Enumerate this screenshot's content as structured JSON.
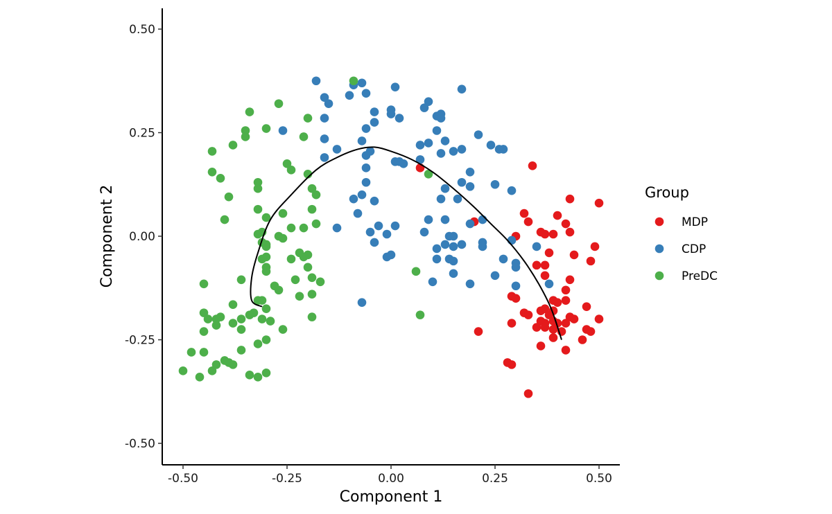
{
  "chart_data": {
    "type": "scatter",
    "title": "",
    "xlabel": "Component 1",
    "ylabel": "Component 2",
    "xlim": [
      -0.55,
      0.55
    ],
    "ylim": [
      -0.55,
      0.55
    ],
    "xticks": [
      -0.5,
      -0.25,
      0.0,
      0.25,
      0.5
    ],
    "yticks": [
      -0.5,
      -0.25,
      0.0,
      0.25,
      0.5
    ],
    "xtick_labels": [
      "-0.50",
      "-0.25",
      "0.00",
      "0.25",
      "0.50"
    ],
    "ytick_labels": [
      "-0.50",
      "-0.25",
      "0.00",
      "0.25",
      "0.50"
    ],
    "legend": {
      "title": "Group",
      "position": "right",
      "entries": [
        "MDP",
        "CDP",
        "PreDC"
      ]
    },
    "series": [
      {
        "name": "MDP",
        "color": "#e41a1c",
        "points": [
          [
            0.07,
            0.165
          ],
          [
            0.34,
            0.17
          ],
          [
            0.43,
            0.09
          ],
          [
            0.5,
            0.08
          ],
          [
            0.32,
            0.055
          ],
          [
            0.4,
            0.05
          ],
          [
            0.33,
            0.035
          ],
          [
            0.42,
            0.03
          ],
          [
            0.36,
            0.01
          ],
          [
            0.37,
            0.005
          ],
          [
            0.39,
            0.005
          ],
          [
            0.43,
            0.01
          ],
          [
            0.2,
            0.035
          ],
          [
            0.3,
            0.0
          ],
          [
            0.49,
            -0.025
          ],
          [
            0.38,
            -0.04
          ],
          [
            0.44,
            -0.045
          ],
          [
            0.48,
            -0.06
          ],
          [
            0.35,
            -0.07
          ],
          [
            0.37,
            -0.07
          ],
          [
            0.37,
            -0.095
          ],
          [
            0.43,
            -0.105
          ],
          [
            0.42,
            -0.13
          ],
          [
            0.29,
            -0.145
          ],
          [
            0.3,
            -0.15
          ],
          [
            0.42,
            -0.155
          ],
          [
            0.39,
            -0.155
          ],
          [
            0.4,
            -0.16
          ],
          [
            0.47,
            -0.17
          ],
          [
            0.36,
            -0.18
          ],
          [
            0.37,
            -0.175
          ],
          [
            0.32,
            -0.185
          ],
          [
            0.39,
            -0.18
          ],
          [
            0.33,
            -0.19
          ],
          [
            0.38,
            -0.19
          ],
          [
            0.43,
            -0.195
          ],
          [
            0.44,
            -0.2
          ],
          [
            0.5,
            -0.2
          ],
          [
            0.36,
            -0.205
          ],
          [
            0.37,
            -0.21
          ],
          [
            0.39,
            -0.205
          ],
          [
            0.4,
            -0.21
          ],
          [
            0.42,
            -0.21
          ],
          [
            0.29,
            -0.21
          ],
          [
            0.37,
            -0.22
          ],
          [
            0.35,
            -0.22
          ],
          [
            0.39,
            -0.225
          ],
          [
            0.47,
            -0.225
          ],
          [
            0.48,
            -0.23
          ],
          [
            0.21,
            -0.23
          ],
          [
            0.41,
            -0.23
          ],
          [
            0.39,
            -0.245
          ],
          [
            0.46,
            -0.25
          ],
          [
            0.36,
            -0.265
          ],
          [
            0.42,
            -0.275
          ],
          [
            0.28,
            -0.305
          ],
          [
            0.29,
            -0.31
          ],
          [
            0.33,
            -0.38
          ]
        ]
      },
      {
        "name": "CDP",
        "color": "#377eb8",
        "points": [
          [
            -0.18,
            0.375
          ],
          [
            -0.07,
            0.37
          ],
          [
            -0.09,
            0.365
          ],
          [
            -0.06,
            0.345
          ],
          [
            0.17,
            0.355
          ],
          [
            0.01,
            0.36
          ],
          [
            -0.1,
            0.34
          ],
          [
            -0.16,
            0.335
          ],
          [
            -0.15,
            0.32
          ],
          [
            0.09,
            0.325
          ],
          [
            0.08,
            0.31
          ],
          [
            0.11,
            0.29
          ],
          [
            0.12,
            0.295
          ],
          [
            -0.04,
            0.3
          ],
          [
            0.0,
            0.305
          ],
          [
            0.0,
            0.295
          ],
          [
            -0.16,
            0.285
          ],
          [
            0.02,
            0.285
          ],
          [
            0.12,
            0.285
          ],
          [
            -0.04,
            0.275
          ],
          [
            -0.06,
            0.26
          ],
          [
            -0.26,
            0.255
          ],
          [
            0.11,
            0.255
          ],
          [
            0.21,
            0.245
          ],
          [
            -0.16,
            0.235
          ],
          [
            -0.07,
            0.23
          ],
          [
            0.09,
            0.225
          ],
          [
            0.13,
            0.23
          ],
          [
            0.07,
            0.22
          ],
          [
            0.24,
            0.22
          ],
          [
            -0.13,
            0.21
          ],
          [
            0.15,
            0.205
          ],
          [
            0.17,
            0.21
          ],
          [
            0.26,
            0.21
          ],
          [
            0.27,
            0.21
          ],
          [
            -0.05,
            0.205
          ],
          [
            0.12,
            0.2
          ],
          [
            -0.16,
            0.19
          ],
          [
            -0.06,
            0.195
          ],
          [
            0.07,
            0.185
          ],
          [
            0.01,
            0.18
          ],
          [
            0.02,
            0.18
          ],
          [
            0.03,
            0.175
          ],
          [
            -0.06,
            0.165
          ],
          [
            0.19,
            0.155
          ],
          [
            -0.06,
            0.13
          ],
          [
            0.17,
            0.13
          ],
          [
            0.25,
            0.125
          ],
          [
            0.13,
            0.115
          ],
          [
            0.19,
            0.12
          ],
          [
            0.29,
            0.11
          ],
          [
            -0.07,
            0.1
          ],
          [
            -0.09,
            0.09
          ],
          [
            0.12,
            0.09
          ],
          [
            0.16,
            0.09
          ],
          [
            -0.04,
            0.085
          ],
          [
            -0.08,
            0.055
          ],
          [
            0.09,
            0.04
          ],
          [
            0.13,
            0.04
          ],
          [
            0.22,
            0.04
          ],
          [
            0.19,
            0.03
          ],
          [
            -0.13,
            0.02
          ],
          [
            -0.03,
            0.025
          ],
          [
            0.01,
            0.025
          ],
          [
            0.08,
            0.01
          ],
          [
            -0.05,
            0.01
          ],
          [
            -0.01,
            0.005
          ],
          [
            0.14,
            0.0
          ],
          [
            0.15,
            0.0
          ],
          [
            0.13,
            -0.02
          ],
          [
            0.11,
            -0.03
          ],
          [
            -0.04,
            -0.015
          ],
          [
            0.17,
            -0.02
          ],
          [
            0.15,
            -0.025
          ],
          [
            0.22,
            -0.015
          ],
          [
            0.22,
            -0.025
          ],
          [
            0.29,
            -0.01
          ],
          [
            0.35,
            -0.025
          ],
          [
            0.27,
            -0.055
          ],
          [
            0.11,
            -0.055
          ],
          [
            0.14,
            -0.055
          ],
          [
            0.15,
            -0.06
          ],
          [
            0.0,
            -0.045
          ],
          [
            -0.01,
            -0.05
          ],
          [
            0.3,
            -0.065
          ],
          [
            0.3,
            -0.075
          ],
          [
            0.15,
            -0.09
          ],
          [
            0.25,
            -0.095
          ],
          [
            0.1,
            -0.11
          ],
          [
            0.19,
            -0.115
          ],
          [
            0.3,
            -0.12
          ],
          [
            0.38,
            -0.115
          ],
          [
            -0.07,
            -0.16
          ]
        ]
      },
      {
        "name": "PreDC",
        "color": "#4daf4a",
        "points": [
          [
            -0.09,
            0.375
          ],
          [
            -0.27,
            0.32
          ],
          [
            -0.34,
            0.3
          ],
          [
            -0.2,
            0.285
          ],
          [
            -0.3,
            0.26
          ],
          [
            -0.35,
            0.255
          ],
          [
            -0.35,
            0.24
          ],
          [
            -0.21,
            0.24
          ],
          [
            -0.38,
            0.22
          ],
          [
            -0.43,
            0.205
          ],
          [
            -0.25,
            0.175
          ],
          [
            -0.24,
            0.16
          ],
          [
            -0.43,
            0.155
          ],
          [
            -0.2,
            0.15
          ],
          [
            0.09,
            0.15
          ],
          [
            -0.41,
            0.14
          ],
          [
            -0.32,
            0.13
          ],
          [
            -0.32,
            0.115
          ],
          [
            -0.19,
            0.115
          ],
          [
            -0.18,
            0.1
          ],
          [
            -0.39,
            0.095
          ],
          [
            -0.32,
            0.065
          ],
          [
            -0.19,
            0.065
          ],
          [
            -0.26,
            0.055
          ],
          [
            -0.3,
            0.045
          ],
          [
            -0.4,
            0.04
          ],
          [
            -0.18,
            0.03
          ],
          [
            -0.24,
            0.02
          ],
          [
            -0.21,
            0.02
          ],
          [
            -0.31,
            0.01
          ],
          [
            -0.32,
            0.005
          ],
          [
            -0.27,
            0.0
          ],
          [
            -0.26,
            -0.005
          ],
          [
            -0.31,
            -0.015
          ],
          [
            -0.3,
            -0.02
          ],
          [
            -0.3,
            -0.025
          ],
          [
            -0.22,
            -0.04
          ],
          [
            -0.2,
            -0.045
          ],
          [
            -0.21,
            -0.05
          ],
          [
            -0.3,
            -0.05
          ],
          [
            -0.31,
            -0.055
          ],
          [
            -0.24,
            -0.055
          ],
          [
            -0.3,
            -0.075
          ],
          [
            -0.2,
            -0.075
          ],
          [
            -0.3,
            -0.085
          ],
          [
            0.06,
            -0.085
          ],
          [
            -0.19,
            -0.1
          ],
          [
            -0.23,
            -0.105
          ],
          [
            -0.36,
            -0.105
          ],
          [
            -0.17,
            -0.11
          ],
          [
            -0.45,
            -0.115
          ],
          [
            -0.28,
            -0.12
          ],
          [
            -0.27,
            -0.13
          ],
          [
            -0.19,
            -0.14
          ],
          [
            -0.22,
            -0.145
          ],
          [
            -0.32,
            -0.155
          ],
          [
            -0.31,
            -0.155
          ],
          [
            -0.38,
            -0.165
          ],
          [
            -0.3,
            -0.175
          ],
          [
            -0.33,
            -0.185
          ],
          [
            -0.34,
            -0.19
          ],
          [
            -0.45,
            -0.185
          ],
          [
            -0.19,
            -0.195
          ],
          [
            0.07,
            -0.19
          ],
          [
            -0.44,
            -0.2
          ],
          [
            -0.42,
            -0.2
          ],
          [
            -0.41,
            -0.195
          ],
          [
            -0.36,
            -0.2
          ],
          [
            -0.38,
            -0.21
          ],
          [
            -0.31,
            -0.2
          ],
          [
            -0.29,
            -0.205
          ],
          [
            -0.42,
            -0.215
          ],
          [
            -0.26,
            -0.225
          ],
          [
            -0.36,
            -0.225
          ],
          [
            -0.45,
            -0.23
          ],
          [
            -0.3,
            -0.25
          ],
          [
            -0.32,
            -0.26
          ],
          [
            -0.36,
            -0.275
          ],
          [
            -0.45,
            -0.28
          ],
          [
            -0.48,
            -0.28
          ],
          [
            -0.4,
            -0.3
          ],
          [
            -0.42,
            -0.31
          ],
          [
            -0.39,
            -0.305
          ],
          [
            -0.38,
            -0.31
          ],
          [
            -0.43,
            -0.325
          ],
          [
            -0.5,
            -0.325
          ],
          [
            -0.3,
            -0.33
          ],
          [
            -0.34,
            -0.335
          ],
          [
            -0.46,
            -0.34
          ],
          [
            -0.32,
            -0.34
          ]
        ]
      }
    ],
    "trajectory": {
      "color": "#000000",
      "points": [
        [
          -0.31,
          -0.17
        ],
        [
          -0.335,
          -0.155
        ],
        [
          -0.335,
          -0.1
        ],
        [
          -0.32,
          -0.04
        ],
        [
          -0.29,
          0.04
        ],
        [
          -0.24,
          0.1
        ],
        [
          -0.18,
          0.16
        ],
        [
          -0.13,
          0.19
        ],
        [
          -0.08,
          0.21
        ],
        [
          -0.04,
          0.215
        ],
        [
          0.0,
          0.205
        ],
        [
          0.05,
          0.185
        ],
        [
          0.1,
          0.155
        ],
        [
          0.15,
          0.115
        ],
        [
          0.2,
          0.07
        ],
        [
          0.24,
          0.03
        ],
        [
          0.28,
          -0.01
        ],
        [
          0.32,
          -0.06
        ],
        [
          0.355,
          -0.115
        ],
        [
          0.385,
          -0.175
        ],
        [
          0.41,
          -0.25
        ]
      ]
    }
  }
}
